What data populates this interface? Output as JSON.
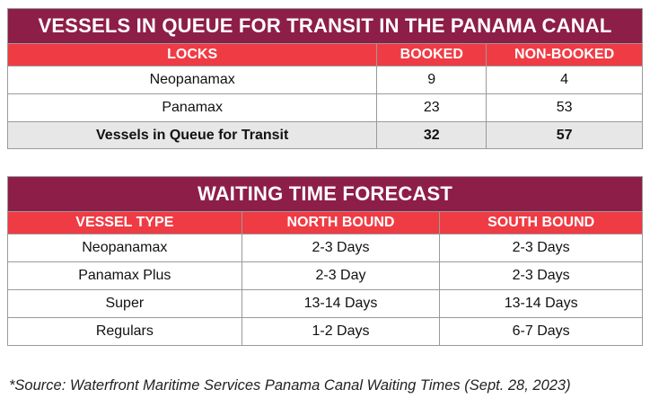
{
  "queue": {
    "title": "VESSELS IN QUEUE FOR TRANSIT IN THE PANAMA CANAL",
    "headers": [
      "LOCKS",
      "BOOKED",
      "NON-BOOKED"
    ],
    "rows": [
      {
        "lock": "Neopanamax",
        "booked": "9",
        "non_booked": "4"
      },
      {
        "lock": "Panamax",
        "booked": "23",
        "non_booked": "53"
      }
    ],
    "total": {
      "label": "Vessels in Queue for Transit",
      "booked": "32",
      "non_booked": "57"
    }
  },
  "forecast": {
    "title": "WAITING TIME FORECAST",
    "headers": [
      "VESSEL TYPE",
      "NORTH BOUND",
      "SOUTH BOUND"
    ],
    "rows": [
      {
        "type": "Neopanamax",
        "north": "2-3 Days",
        "south": "2-3 Days"
      },
      {
        "type": "Panamax Plus",
        "north": "2-3 Day",
        "south": "2-3 Days"
      },
      {
        "type": "Super",
        "north": "13-14 Days",
        "south": "13-14 Days"
      },
      {
        "type": "Regulars",
        "north": "1-2 Days",
        "south": "6-7 Days"
      }
    ]
  },
  "source_note": "*Source: Waterfront Maritime Services Panama Canal Waiting Times (Sept. 28, 2023)",
  "colors": {
    "title_bg": "#8d1e47",
    "header_bg": "#ef3c44",
    "total_bg": "#e7e7e7"
  }
}
